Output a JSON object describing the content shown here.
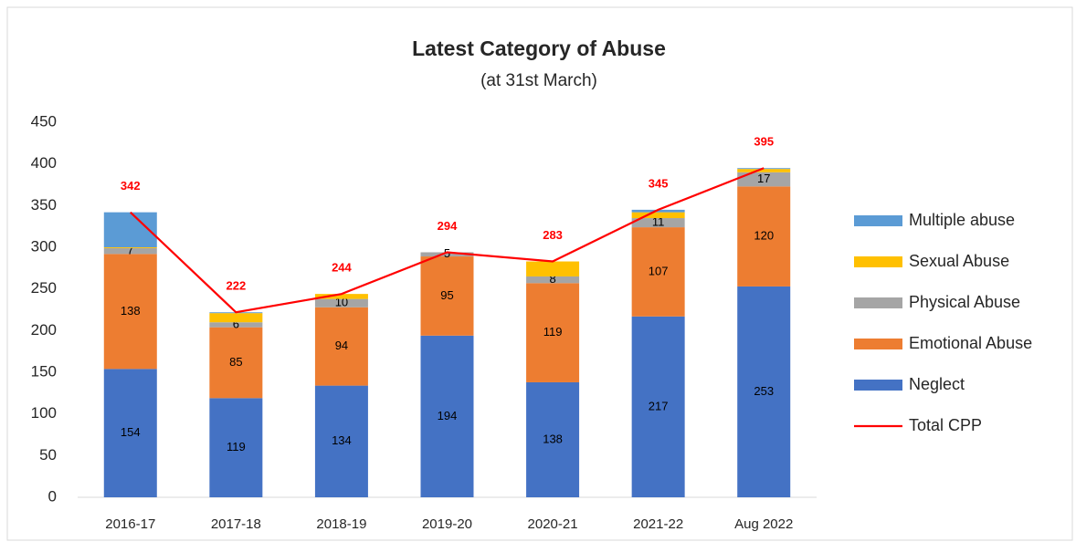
{
  "chart_data": {
    "type": "bar",
    "stacked": true,
    "title": "Latest Category of Abuse",
    "subtitle": "(at 31st March)",
    "categories": [
      "2016-17",
      "2017-18",
      "2018-19",
      "2019-20",
      "2020-21",
      "2021-22",
      "Aug 2022"
    ],
    "series": [
      {
        "name": "Neglect",
        "color": "#4472c4",
        "data_labels": true,
        "values": [
          154,
          119,
          134,
          194,
          138,
          217,
          253
        ]
      },
      {
        "name": "Emotional Abuse",
        "color": "#ed7d31",
        "data_labels": true,
        "values": [
          138,
          85,
          94,
          95,
          119,
          107,
          120
        ]
      },
      {
        "name": "Physical Abuse",
        "color": "#a5a5a5",
        "data_labels": true,
        "values": [
          7,
          6,
          10,
          5,
          8,
          11,
          17
        ]
      },
      {
        "name": "Sexual Abuse",
        "color": "#ffc000",
        "data_labels": false,
        "values": [
          1,
          11,
          6,
          0,
          18,
          7,
          4
        ]
      },
      {
        "name": "Multiple abuse",
        "color": "#5b9bd5",
        "data_labels": false,
        "values": [
          42,
          1,
          0,
          0,
          0,
          3,
          1
        ]
      },
      {
        "name": "Total CPP",
        "type": "line",
        "color": "#ff0000",
        "data_labels": true,
        "values": [
          342,
          222,
          244,
          294,
          283,
          345,
          395
        ]
      }
    ],
    "ylim": [
      0,
      450
    ],
    "yticks": [
      0,
      50,
      100,
      150,
      200,
      250,
      300,
      350,
      400,
      450
    ],
    "grid": false,
    "legend": "right"
  }
}
